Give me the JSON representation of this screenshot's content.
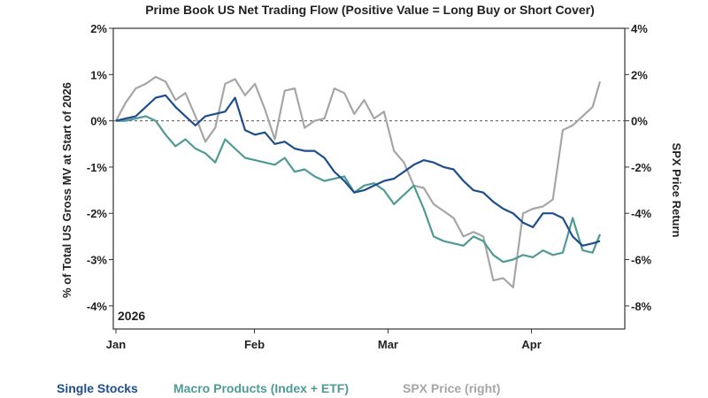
{
  "chart_data": {
    "type": "line",
    "title": "Prime Book US Net Trading Flow (Positive Value = Long Buy or Short Cover)",
    "ylabel_left": "% of Total US Gross MV at Start of 2026",
    "ylabel_right": "SPX Price Return",
    "year_label": "2026",
    "ylim_left": [
      -4.5,
      2
    ],
    "ylim_right": [
      -9,
      4
    ],
    "yticks_left": [
      "2%",
      "1%",
      "0%",
      "-1%",
      "-2%",
      "-3%",
      "-4%"
    ],
    "yticks_right": [
      "4%",
      "2%",
      "0%",
      "-2%",
      "-4%",
      "-6%",
      "-8%"
    ],
    "x_ticks": [
      "Jan",
      "Feb",
      "Mar",
      "Apr"
    ],
    "x_range": [
      0,
      100
    ],
    "x_tick_positions": [
      0,
      27.9,
      54.8,
      83.7
    ],
    "zero_line": true,
    "grid": false,
    "legend_position": "bottom",
    "colors": {
      "single_stocks": "#1f4e8c",
      "macro_products": "#4f9a94",
      "spx": "#a6a6a6",
      "axis": "#333333"
    },
    "series": [
      {
        "name": "Single Stocks",
        "axis": "left",
        "x": [
          0,
          2,
          4,
          6,
          8,
          10,
          12,
          14,
          16,
          18,
          20,
          22,
          24,
          26,
          28,
          30,
          32,
          34,
          36,
          38,
          40,
          42,
          44,
          46,
          48,
          50,
          52,
          54,
          56,
          58,
          60,
          62,
          64,
          66,
          68,
          70,
          72,
          74,
          76,
          78,
          80,
          82,
          84,
          86,
          88,
          90,
          92,
          94,
          96,
          97.5
        ],
        "y": [
          0.0,
          0.05,
          0.1,
          0.3,
          0.5,
          0.55,
          0.3,
          0.1,
          -0.1,
          0.1,
          0.15,
          0.2,
          0.5,
          -0.2,
          -0.3,
          -0.25,
          -0.5,
          -0.45,
          -0.6,
          -0.65,
          -0.65,
          -0.8,
          -1.1,
          -1.3,
          -1.55,
          -1.5,
          -1.4,
          -1.3,
          -1.25,
          -1.1,
          -0.95,
          -0.85,
          -0.9,
          -1.0,
          -1.05,
          -1.3,
          -1.5,
          -1.55,
          -1.75,
          -1.9,
          -2.0,
          -2.2,
          -2.3,
          -2.0,
          -2.0,
          -2.1,
          -2.5,
          -2.7,
          -2.65,
          -2.6
        ]
      },
      {
        "name": "Macro Products (Index + ETF)",
        "axis": "left",
        "x": [
          0,
          2,
          4,
          6,
          8,
          10,
          12,
          14,
          16,
          18,
          20,
          22,
          24,
          26,
          28,
          30,
          32,
          34,
          36,
          38,
          40,
          42,
          44,
          46,
          48,
          50,
          52,
          54,
          56,
          58,
          60,
          62,
          64,
          66,
          68,
          70,
          72,
          74,
          76,
          78,
          80,
          82,
          84,
          86,
          88,
          90,
          92,
          94,
          96,
          97.5
        ],
        "y": [
          0.0,
          0.0,
          0.05,
          0.1,
          0.0,
          -0.3,
          -0.55,
          -0.4,
          -0.6,
          -0.7,
          -0.9,
          -0.4,
          -0.6,
          -0.8,
          -0.85,
          -0.9,
          -0.95,
          -0.8,
          -1.1,
          -1.05,
          -1.2,
          -1.3,
          -1.25,
          -1.2,
          -1.55,
          -1.4,
          -1.35,
          -1.5,
          -1.8,
          -1.6,
          -1.4,
          -1.9,
          -2.5,
          -2.6,
          -2.65,
          -2.7,
          -2.5,
          -2.6,
          -2.9,
          -3.05,
          -3.0,
          -2.9,
          -2.95,
          -2.8,
          -2.9,
          -2.85,
          -2.1,
          -2.8,
          -2.85,
          -2.45
        ]
      },
      {
        "name": "SPX Price (right)",
        "axis": "right",
        "x": [
          0,
          2,
          4,
          6,
          8,
          10,
          12,
          14,
          16,
          18,
          20,
          22,
          24,
          26,
          28,
          30,
          32,
          34,
          36,
          38,
          40,
          42,
          44,
          46,
          48,
          50,
          52,
          54,
          56,
          58,
          60,
          62,
          64,
          66,
          68,
          70,
          72,
          74,
          76,
          78,
          80,
          82,
          84,
          86,
          88,
          90,
          92,
          94,
          96,
          97.5
        ],
        "y": [
          0.0,
          0.8,
          1.4,
          1.6,
          1.9,
          1.7,
          0.9,
          1.2,
          0.2,
          -0.9,
          -0.3,
          1.6,
          1.8,
          1.1,
          1.6,
          0.5,
          -0.8,
          1.3,
          1.4,
          -0.3,
          0.0,
          0.1,
          1.4,
          1.2,
          0.3,
          0.9,
          0.1,
          0.4,
          -1.3,
          -1.8,
          -2.8,
          -2.9,
          -3.6,
          -3.9,
          -4.2,
          -5.0,
          -4.8,
          -5.0,
          -6.9,
          -6.8,
          -7.2,
          -4.0,
          -3.8,
          -3.7,
          -3.4,
          -0.4,
          -0.2,
          0.2,
          0.6,
          1.7
        ]
      }
    ]
  }
}
